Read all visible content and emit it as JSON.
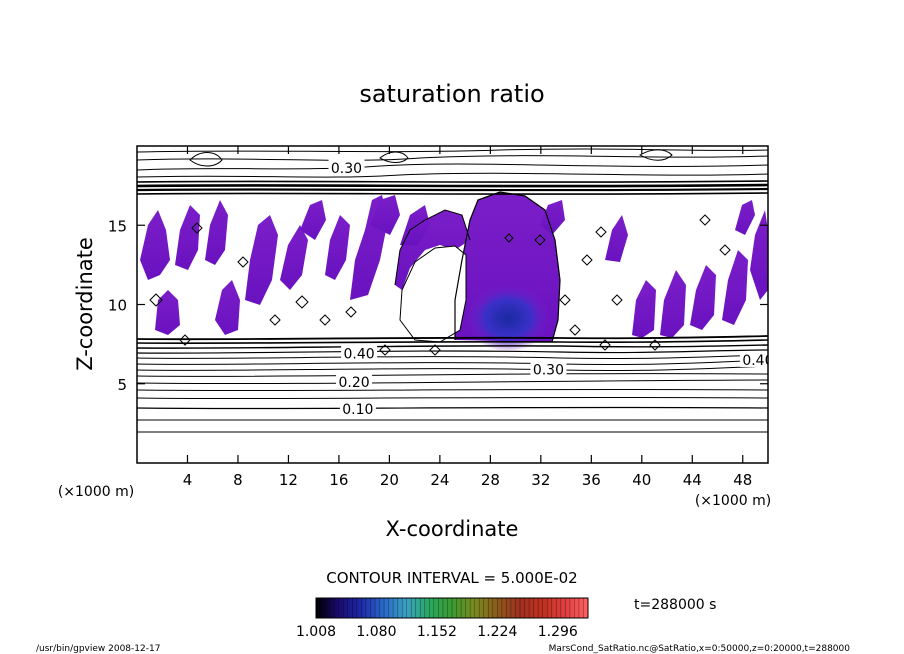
{
  "chart_data": {
    "type": "contour",
    "title": "saturation ratio",
    "xlabel": "X-coordinate",
    "ylabel": "Z-coordinate",
    "x_unit": "(×1000 m)",
    "y_unit": "(×1000 m)",
    "xlim": [
      0,
      50
    ],
    "ylim": [
      0,
      20
    ],
    "x_ticks": [
      4,
      8,
      12,
      16,
      20,
      24,
      28,
      32,
      36,
      40,
      44,
      48
    ],
    "y_ticks": [
      5,
      10,
      15
    ],
    "contour_interval_text": "CONTOUR INTERVAL = 5.000E-02",
    "contour_labels": [
      {
        "text": "0.10",
        "x": 17.5,
        "z": 3.4
      },
      {
        "text": "0.20",
        "x": 17.2,
        "z": 5.1
      },
      {
        "text": "0.30",
        "x": 32.6,
        "z": 5.9
      },
      {
        "text": "0.40",
        "x": 17.6,
        "z": 6.9
      },
      {
        "text": "0.30",
        "x": 16.6,
        "z": 18.6
      },
      {
        "text": "0.40",
        "x": 49.2,
        "z": 6.5
      }
    ],
    "colorbar": {
      "labels": [
        "1.008",
        "1.080",
        "1.152",
        "1.224",
        "1.296"
      ],
      "min": 1.008,
      "max": 1.332,
      "colors": [
        "#000000",
        "#1a0a70",
        "#1e2aa8",
        "#2a6ac8",
        "#3aa0c0",
        "#2aa860",
        "#3a9a30",
        "#7a8a20",
        "#8a5a1a",
        "#a03020",
        "#c03020",
        "#e04040",
        "#ff6060"
      ]
    },
    "time_label": "t=288000 s",
    "footer_left": "/usr/bin/gpview   2008-12-17",
    "footer_right": "MarsCond_SatRatio.nc@SatRatio,x=0:50000,z=0:20000,t=288000"
  }
}
